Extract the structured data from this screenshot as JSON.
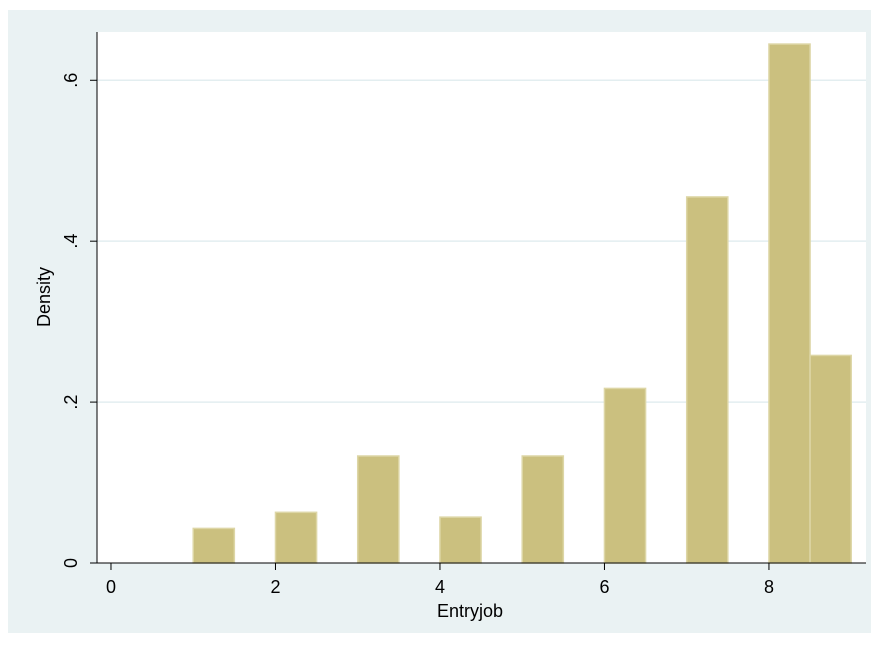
{
  "chart_data": {
    "type": "histogram",
    "x_label": "Entryjob",
    "y_label": "Density",
    "bins": [
      1,
      1.5,
      2,
      2.5,
      3,
      3.5,
      4,
      4.5,
      5,
      5.5,
      6,
      6.5,
      7,
      7.5,
      8,
      8.5,
      9
    ],
    "values": [
      0.043,
      0,
      0.063,
      0,
      0.133,
      0,
      0.057,
      0,
      0.133,
      0,
      0.217,
      0,
      0.455,
      0,
      0.645,
      0.258
    ],
    "color": "#cbc07f",
    "xlim": [
      -0.17,
      9.18
    ],
    "xticks": [
      0,
      2,
      4,
      6,
      8
    ],
    "ylim": [
      0,
      0.66
    ],
    "yticks": [
      0,
      {
        "value": 0.2,
        "label": ".2"
      },
      {
        "value": 0.4,
        "label": ".4"
      },
      {
        "value": 0.6,
        "label": ".6"
      }
    ],
    "grid": true
  }
}
